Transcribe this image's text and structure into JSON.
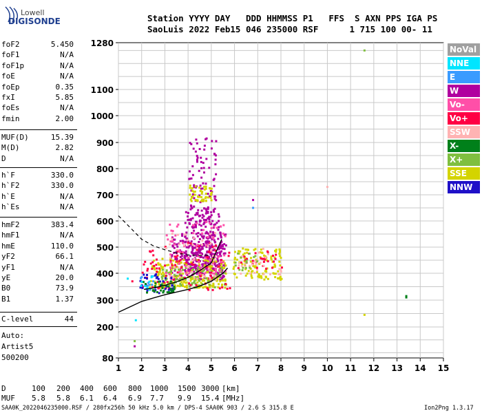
{
  "brand": {
    "line1": "Lowell",
    "line2": "DIGISONDE"
  },
  "header": {
    "line1": "Station YYYY DAY   DDD HHMMSS P1   FFS  S AXN PPS IGA PS",
    "line2": "SaoLuis 2022 Feb15 046 235000 RSF      1 715 100 00- 11"
  },
  "params": {
    "group1": [
      {
        "k": "foF2",
        "v": "5.450"
      },
      {
        "k": "foF1",
        "v": "N/A"
      },
      {
        "k": "foF1p",
        "v": "N/A"
      },
      {
        "k": "foE",
        "v": "N/A"
      },
      {
        "k": "foEp",
        "v": "0.35"
      },
      {
        "k": "fxI",
        "v": "5.85"
      },
      {
        "k": "foEs",
        "v": "N/A"
      },
      {
        "k": "fmin",
        "v": "2.00"
      }
    ],
    "group2": [
      {
        "k": "MUF(D)",
        "v": "15.39"
      },
      {
        "k": "M(D)",
        "v": "2.82"
      },
      {
        "k": "D",
        "v": "N/A"
      }
    ],
    "group3": [
      {
        "k": "h`F",
        "v": "330.0"
      },
      {
        "k": "h`F2",
        "v": "330.0"
      },
      {
        "k": "h`E",
        "v": "N/A"
      },
      {
        "k": "h`Es",
        "v": "N/A"
      }
    ],
    "group4": [
      {
        "k": "hmF2",
        "v": "383.4"
      },
      {
        "k": "hmF1",
        "v": "N/A"
      },
      {
        "k": "hmE",
        "v": "110.0"
      },
      {
        "k": "yF2",
        "v": "66.1"
      },
      {
        "k": "yF1",
        "v": "N/A"
      },
      {
        "k": "yE",
        "v": "20.0"
      },
      {
        "k": "B0",
        "v": "73.9"
      },
      {
        "k": "B1",
        "v": "1.37"
      }
    ],
    "group5": [
      {
        "k": "C-level",
        "v": "44"
      }
    ],
    "auto": [
      "Auto:",
      "Artist5",
      "500200"
    ]
  },
  "chart_data": {
    "type": "scatter",
    "x_ticks": [
      "1",
      "2",
      "3",
      "4",
      "5",
      "6",
      "7",
      "8",
      "9",
      "10",
      "11",
      "12",
      "13",
      "14",
      "15"
    ],
    "y_ticks": [
      "80",
      "200",
      "300",
      "400",
      "500",
      "600",
      "700",
      "800",
      "900",
      "1000",
      "1100",
      "1280"
    ],
    "xlim": [
      1,
      15
    ],
    "y_tick_values": [
      80,
      200,
      300,
      400,
      500,
      600,
      700,
      800,
      900,
      1000,
      1100,
      1280
    ],
    "grid": true,
    "legend_position": "right",
    "legend": [
      {
        "name": "NoVal",
        "color": "#a0a0a0"
      },
      {
        "name": "NNE",
        "color": "#00e5ff"
      },
      {
        "name": "E",
        "color": "#3a9bff"
      },
      {
        "name": "W",
        "color": "#b0009f"
      },
      {
        "name": "Vo-",
        "color": "#ff4fa8"
      },
      {
        "name": "Vo+",
        "color": "#ff0044"
      },
      {
        "name": "SSW",
        "color": "#ffb3b3"
      },
      {
        "name": "X-",
        "color": "#00801a"
      },
      {
        "name": "X+",
        "color": "#7fbf3f"
      },
      {
        "name": "SSE",
        "color": "#d4d400"
      },
      {
        "name": "NNW",
        "color": "#1f10c8"
      }
    ],
    "clusters": [
      {
        "color": "W",
        "x": [
          3.8,
          5.4
        ],
        "y": [
          420,
          640
        ],
        "n": 260
      },
      {
        "color": "W",
        "x": [
          3.2,
          5.6
        ],
        "y": [
          380,
          560
        ],
        "n": 260
      },
      {
        "color": "W",
        "x": [
          4.0,
          5.2
        ],
        "y": [
          640,
          930
        ],
        "n": 90
      },
      {
        "color": "SSE",
        "x": [
          2.3,
          5.6
        ],
        "y": [
          350,
          460
        ],
        "n": 220
      },
      {
        "color": "SSE",
        "x": [
          4.0,
          5.0
        ],
        "y": [
          680,
          740
        ],
        "n": 50
      },
      {
        "color": "X+",
        "x": [
          2.8,
          5.6
        ],
        "y": [
          350,
          430
        ],
        "n": 90
      },
      {
        "color": "Vo+",
        "x": [
          2.0,
          5.8
        ],
        "y": [
          340,
          520
        ],
        "n": 90
      },
      {
        "color": "Vo-",
        "x": [
          3.0,
          5.6
        ],
        "y": [
          400,
          600
        ],
        "n": 80
      },
      {
        "color": "SSW",
        "x": [
          3.0,
          5.2
        ],
        "y": [
          380,
          560
        ],
        "n": 50
      },
      {
        "color": "NNW",
        "x": [
          1.8,
          3.3
        ],
        "y": [
          330,
          400
        ],
        "n": 35
      },
      {
        "color": "X-",
        "x": [
          2.0,
          3.4
        ],
        "y": [
          330,
          380
        ],
        "n": 30
      },
      {
        "color": "E",
        "x": [
          1.9,
          2.5
        ],
        "y": [
          340,
          400
        ],
        "n": 10
      },
      {
        "color": "NNE",
        "x": [
          1.9,
          2.5
        ],
        "y": [
          340,
          400
        ],
        "n": 8
      },
      {
        "color": "SSE",
        "x": [
          5.9,
          8.0
        ],
        "y": [
          380,
          500
        ],
        "n": 110
      },
      {
        "color": "Vo+",
        "x": [
          6.1,
          8.0
        ],
        "y": [
          420,
          490
        ],
        "n": 30
      },
      {
        "color": "SSW",
        "x": [
          6.1,
          8.0
        ],
        "y": [
          400,
          500
        ],
        "n": 30
      },
      {
        "color": "X+",
        "x": [
          5.9,
          7.0
        ],
        "y": [
          390,
          480
        ],
        "n": 15
      }
    ],
    "points": [
      {
        "x": 11.6,
        "y": 1250,
        "c": "X+"
      },
      {
        "x": 13.4,
        "y": 315,
        "c": "X-"
      },
      {
        "x": 13.4,
        "y": 310,
        "c": "X-"
      },
      {
        "x": 11.6,
        "y": 245,
        "c": "SSE"
      },
      {
        "x": 10.0,
        "y": 730,
        "c": "SSW"
      },
      {
        "x": 6.8,
        "y": 680,
        "c": "W"
      },
      {
        "x": 6.8,
        "y": 650,
        "c": "E"
      },
      {
        "x": 1.75,
        "y": 225,
        "c": "NNE"
      },
      {
        "x": 1.7,
        "y": 145,
        "c": "X+"
      },
      {
        "x": 1.7,
        "y": 125,
        "c": "W"
      },
      {
        "x": 1.4,
        "y": 380,
        "c": "NNE"
      },
      {
        "x": 1.6,
        "y": 370,
        "c": "Vo+"
      }
    ],
    "trace_solid_lower": [
      [
        1,
        255
      ],
      [
        1.5,
        275
      ],
      [
        2,
        295
      ],
      [
        2.5,
        308
      ],
      [
        3,
        320
      ],
      [
        3.5,
        330
      ],
      [
        4,
        340
      ],
      [
        4.5,
        352
      ],
      [
        5,
        370
      ],
      [
        5.5,
        400
      ],
      [
        5.7,
        420
      ]
    ],
    "trace_solid_upper": [
      [
        2.1,
        340
      ],
      [
        2.5,
        345
      ],
      [
        3,
        355
      ],
      [
        3.5,
        368
      ],
      [
        4,
        385
      ],
      [
        4.5,
        410
      ],
      [
        5,
        440
      ],
      [
        5.2,
        480
      ],
      [
        5.45,
        530
      ]
    ],
    "trace_dashed": [
      [
        1,
        620
      ],
      [
        1.5,
        575
      ],
      [
        2,
        530
      ],
      [
        2.5,
        505
      ],
      [
        3,
        490
      ],
      [
        3.5,
        478
      ],
      [
        4,
        470
      ],
      [
        4.5,
        468
      ],
      [
        5,
        470
      ]
    ]
  },
  "footer": {
    "d_label": "D",
    "d_values": [
      "100",
      "200",
      "400",
      "600",
      "800",
      "1000",
      "1500",
      "3000",
      "[km]"
    ],
    "muf_label": "MUF",
    "muf_values": [
      "5.8",
      "5.8",
      "6.1",
      "6.4",
      "6.9",
      "7.7",
      "9.9",
      "15.4",
      "[MHz]"
    ],
    "file_info": "SAA0K_2022046235000.RSF / 280fx256h 50 kHz 5.0 km / DPS-4 SAA0K 903 / 2.6 S 315.8 E",
    "version": "Ion2Png 1.3.17"
  }
}
